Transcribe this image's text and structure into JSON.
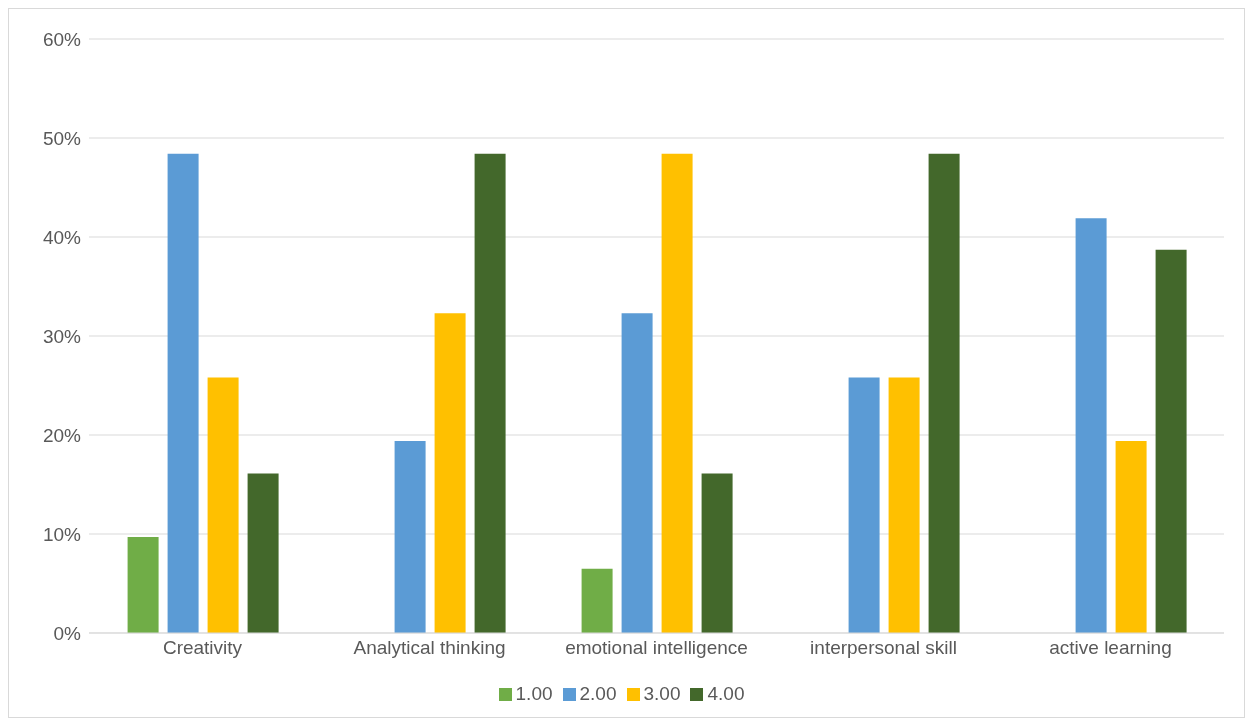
{
  "chart_data": {
    "type": "bar",
    "categories": [
      "Creativity",
      "Analytical thinking",
      "emotional intelligence",
      "interpersonal skill",
      "active learning"
    ],
    "series": [
      {
        "name": "1.00",
        "color": "#70ad47",
        "values": [
          9.7,
          null,
          6.5,
          null,
          null
        ]
      },
      {
        "name": "2.00",
        "color": "#5b9bd5",
        "values": [
          48.4,
          19.4,
          32.3,
          25.8,
          41.9
        ]
      },
      {
        "name": "3.00",
        "color": "#ffc000",
        "values": [
          25.8,
          32.3,
          48.4,
          25.8,
          19.4
        ]
      },
      {
        "name": "4.00",
        "color": "#43682b",
        "values": [
          16.1,
          48.4,
          16.1,
          48.4,
          38.7
        ]
      }
    ],
    "ylim": [
      0,
      60
    ],
    "yticks": [
      {
        "value": 0,
        "label": "0%"
      },
      {
        "value": 10,
        "label": "10%"
      },
      {
        "value": 20,
        "label": "20%"
      },
      {
        "value": 30,
        "label": "30%"
      },
      {
        "value": 40,
        "label": "40%"
      },
      {
        "value": 50,
        "label": "50%"
      },
      {
        "value": 60,
        "label": "60%"
      }
    ],
    "grid": "y",
    "legend": "bottom"
  }
}
